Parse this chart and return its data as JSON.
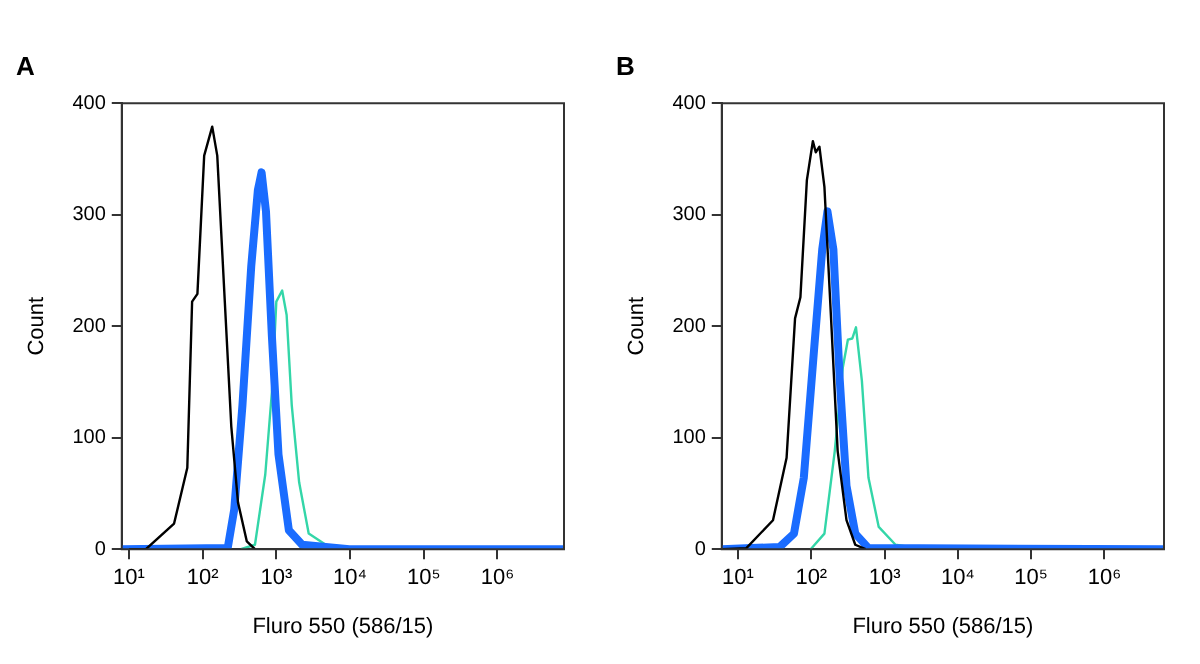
{
  "chart_data": [
    {
      "type": "line",
      "title": "A",
      "xlabel": "Fluro 550 (586/15)",
      "ylabel": "Count",
      "log": "x",
      "grid": false,
      "legend": false,
      "marker": "none",
      "xlim": [
        8,
        8000000
      ],
      "ylim": [
        0,
        400
      ],
      "xticks": [
        {
          "value": 10,
          "label": "10¹"
        },
        {
          "value": 100,
          "label": "10²"
        },
        {
          "value": 1000,
          "label": "10³"
        },
        {
          "value": 10000,
          "label": "10⁴"
        },
        {
          "value": 100000,
          "label": "10⁵"
        },
        {
          "value": 1000000,
          "label": "10⁶"
        }
      ],
      "yticks": [
        0,
        100,
        200,
        300,
        400
      ],
      "series": [
        {
          "color": "#000000",
          "x": [
            10,
            17,
            41,
            62,
            72,
            85,
            105,
            135,
            158,
            200,
            245,
            302,
            398,
            513
          ],
          "values": [
            0,
            0,
            23,
            73,
            222,
            229,
            353,
            379,
            353,
            222,
            110,
            42,
            7,
            0
          ]
        },
        {
          "color": "#1a6cff",
          "x": [
            8,
            219,
            269,
            347,
            457,
            562,
            631,
            724,
            871,
            1070,
            1480,
            2240,
            9770,
            8000000
          ],
          "values": [
            0,
            1,
            36,
            129,
            254,
            322,
            338,
            303,
            191,
            85,
            17,
            4,
            0,
            0
          ]
        },
        {
          "color": "#33d6a8",
          "x": [
            330,
            513,
            708,
            871,
            1000,
            1200,
            1380,
            1620,
            2040,
            2750,
            4680,
            6460
          ],
          "values": [
            0,
            4,
            67,
            141,
            222,
            232,
            210,
            129,
            60,
            14,
            4,
            0
          ]
        }
      ]
    },
    {
      "type": "line",
      "title": "B",
      "xlabel": "Fluro 550 (586/15)",
      "ylabel": "Count",
      "log": "x",
      "grid": false,
      "legend": false,
      "marker": "none",
      "xlim": [
        6,
        6500000
      ],
      "ylim": [
        0,
        400
      ],
      "xticks": [
        {
          "value": 10,
          "label": "10¹"
        },
        {
          "value": 100,
          "label": "10²"
        },
        {
          "value": 1000,
          "label": "10³"
        },
        {
          "value": 10000,
          "label": "10⁴"
        },
        {
          "value": 100000,
          "label": "10⁵"
        },
        {
          "value": 1000000,
          "label": "10⁶"
        }
      ],
      "yticks": [
        0,
        100,
        200,
        300,
        400
      ],
      "series": [
        {
          "color": "#000000",
          "x": [
            6,
            13,
            30,
            46,
            60,
            71,
            87,
            105,
            115,
            129,
            151,
            186,
            229,
            302,
            398,
            550
          ],
          "values": [
            0,
            1,
            26,
            82,
            207,
            226,
            331,
            366,
            356,
            361,
            325,
            207,
            88,
            26,
            4,
            0
          ]
        },
        {
          "color": "#1a6cff",
          "x": [
            6,
            37,
            58,
            79,
            110,
            141,
            166,
            200,
            245,
            302,
            398,
            603,
            6500000
          ],
          "values": [
            0,
            2,
            14,
            64,
            182,
            269,
            303,
            269,
            151,
            57,
            14,
            1,
            0
          ]
        },
        {
          "color": "#33d6a8",
          "x": [
            98,
            151,
            209,
            269,
            316,
            363,
            407,
            490,
            603,
            832,
            1410,
            3390
          ],
          "values": [
            0,
            14,
            88,
            163,
            188,
            189,
            199,
            151,
            64,
            20,
            4,
            0
          ]
        }
      ]
    }
  ]
}
